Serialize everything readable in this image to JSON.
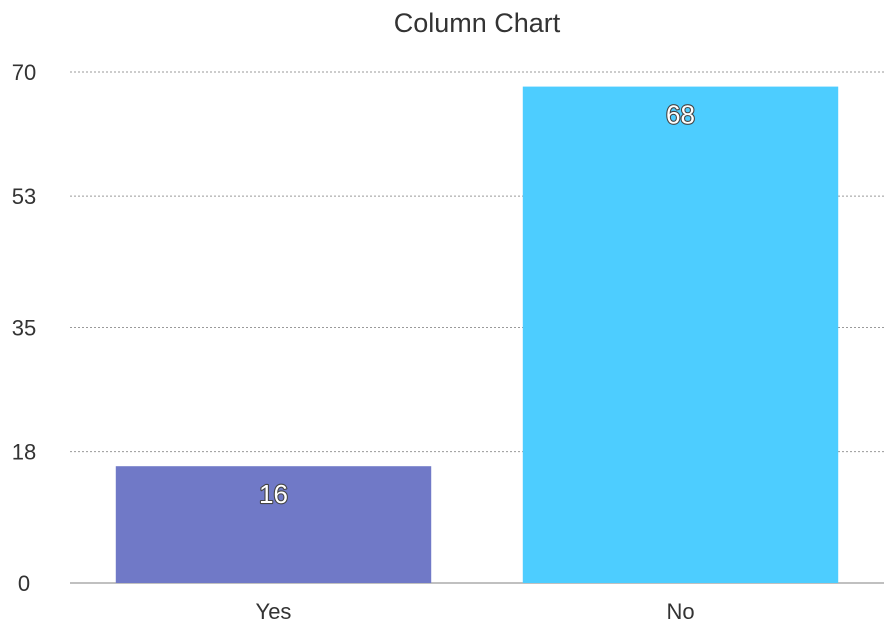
{
  "chart_data": {
    "type": "bar",
    "title": "Column Chart",
    "xlabel": "",
    "ylabel": "",
    "categories": [
      "Yes",
      "No"
    ],
    "values": [
      16,
      68
    ],
    "value_labels": [
      "16",
      "68"
    ],
    "ylim": [
      0,
      70
    ],
    "yticks": [
      0,
      18,
      35,
      53,
      70
    ],
    "ytick_labels": [
      "0",
      "18",
      "35",
      "53",
      "70"
    ],
    "grid": true,
    "legend": "none",
    "colors": [
      "#7079c7",
      "#4dcdff"
    ],
    "gridline_color": "#9a9a9a",
    "text_color": "#333333"
  }
}
